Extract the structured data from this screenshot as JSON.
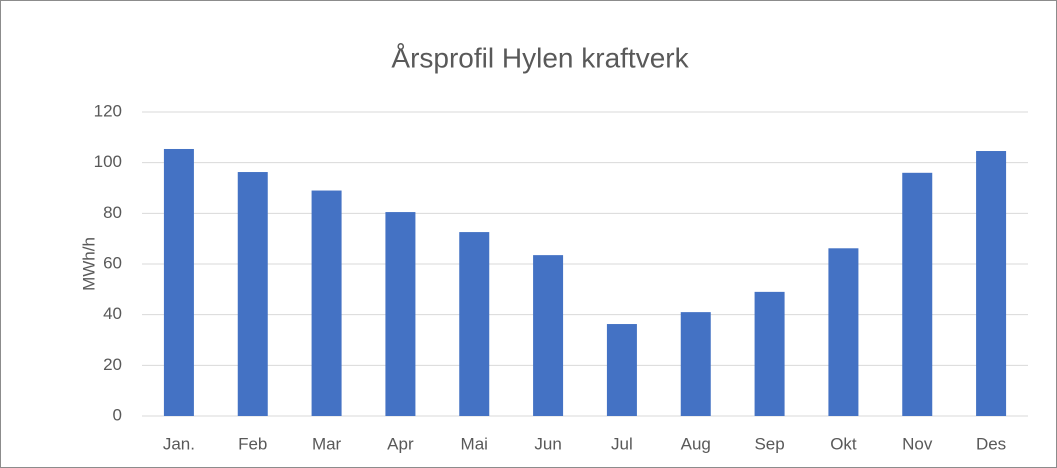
{
  "chart_data": {
    "type": "bar",
    "title": "Årsprofil Hylen kraftverk",
    "y_label": "MWh/h",
    "categories": [
      "Jan.",
      "Feb",
      "Mar",
      "Apr",
      "Mai",
      "Jun",
      "Jul",
      "Aug",
      "Sep",
      "Okt",
      "Nov",
      "Des"
    ],
    "values": [
      105.4,
      96.3,
      89,
      80.5,
      72.6,
      63.5,
      36.3,
      41,
      49,
      66.2,
      96,
      104.6
    ],
    "color": "#4472c4",
    "ylim": [
      0,
      120
    ],
    "yticks": [
      0,
      20,
      40,
      60,
      80,
      100,
      120
    ],
    "grid": true
  }
}
